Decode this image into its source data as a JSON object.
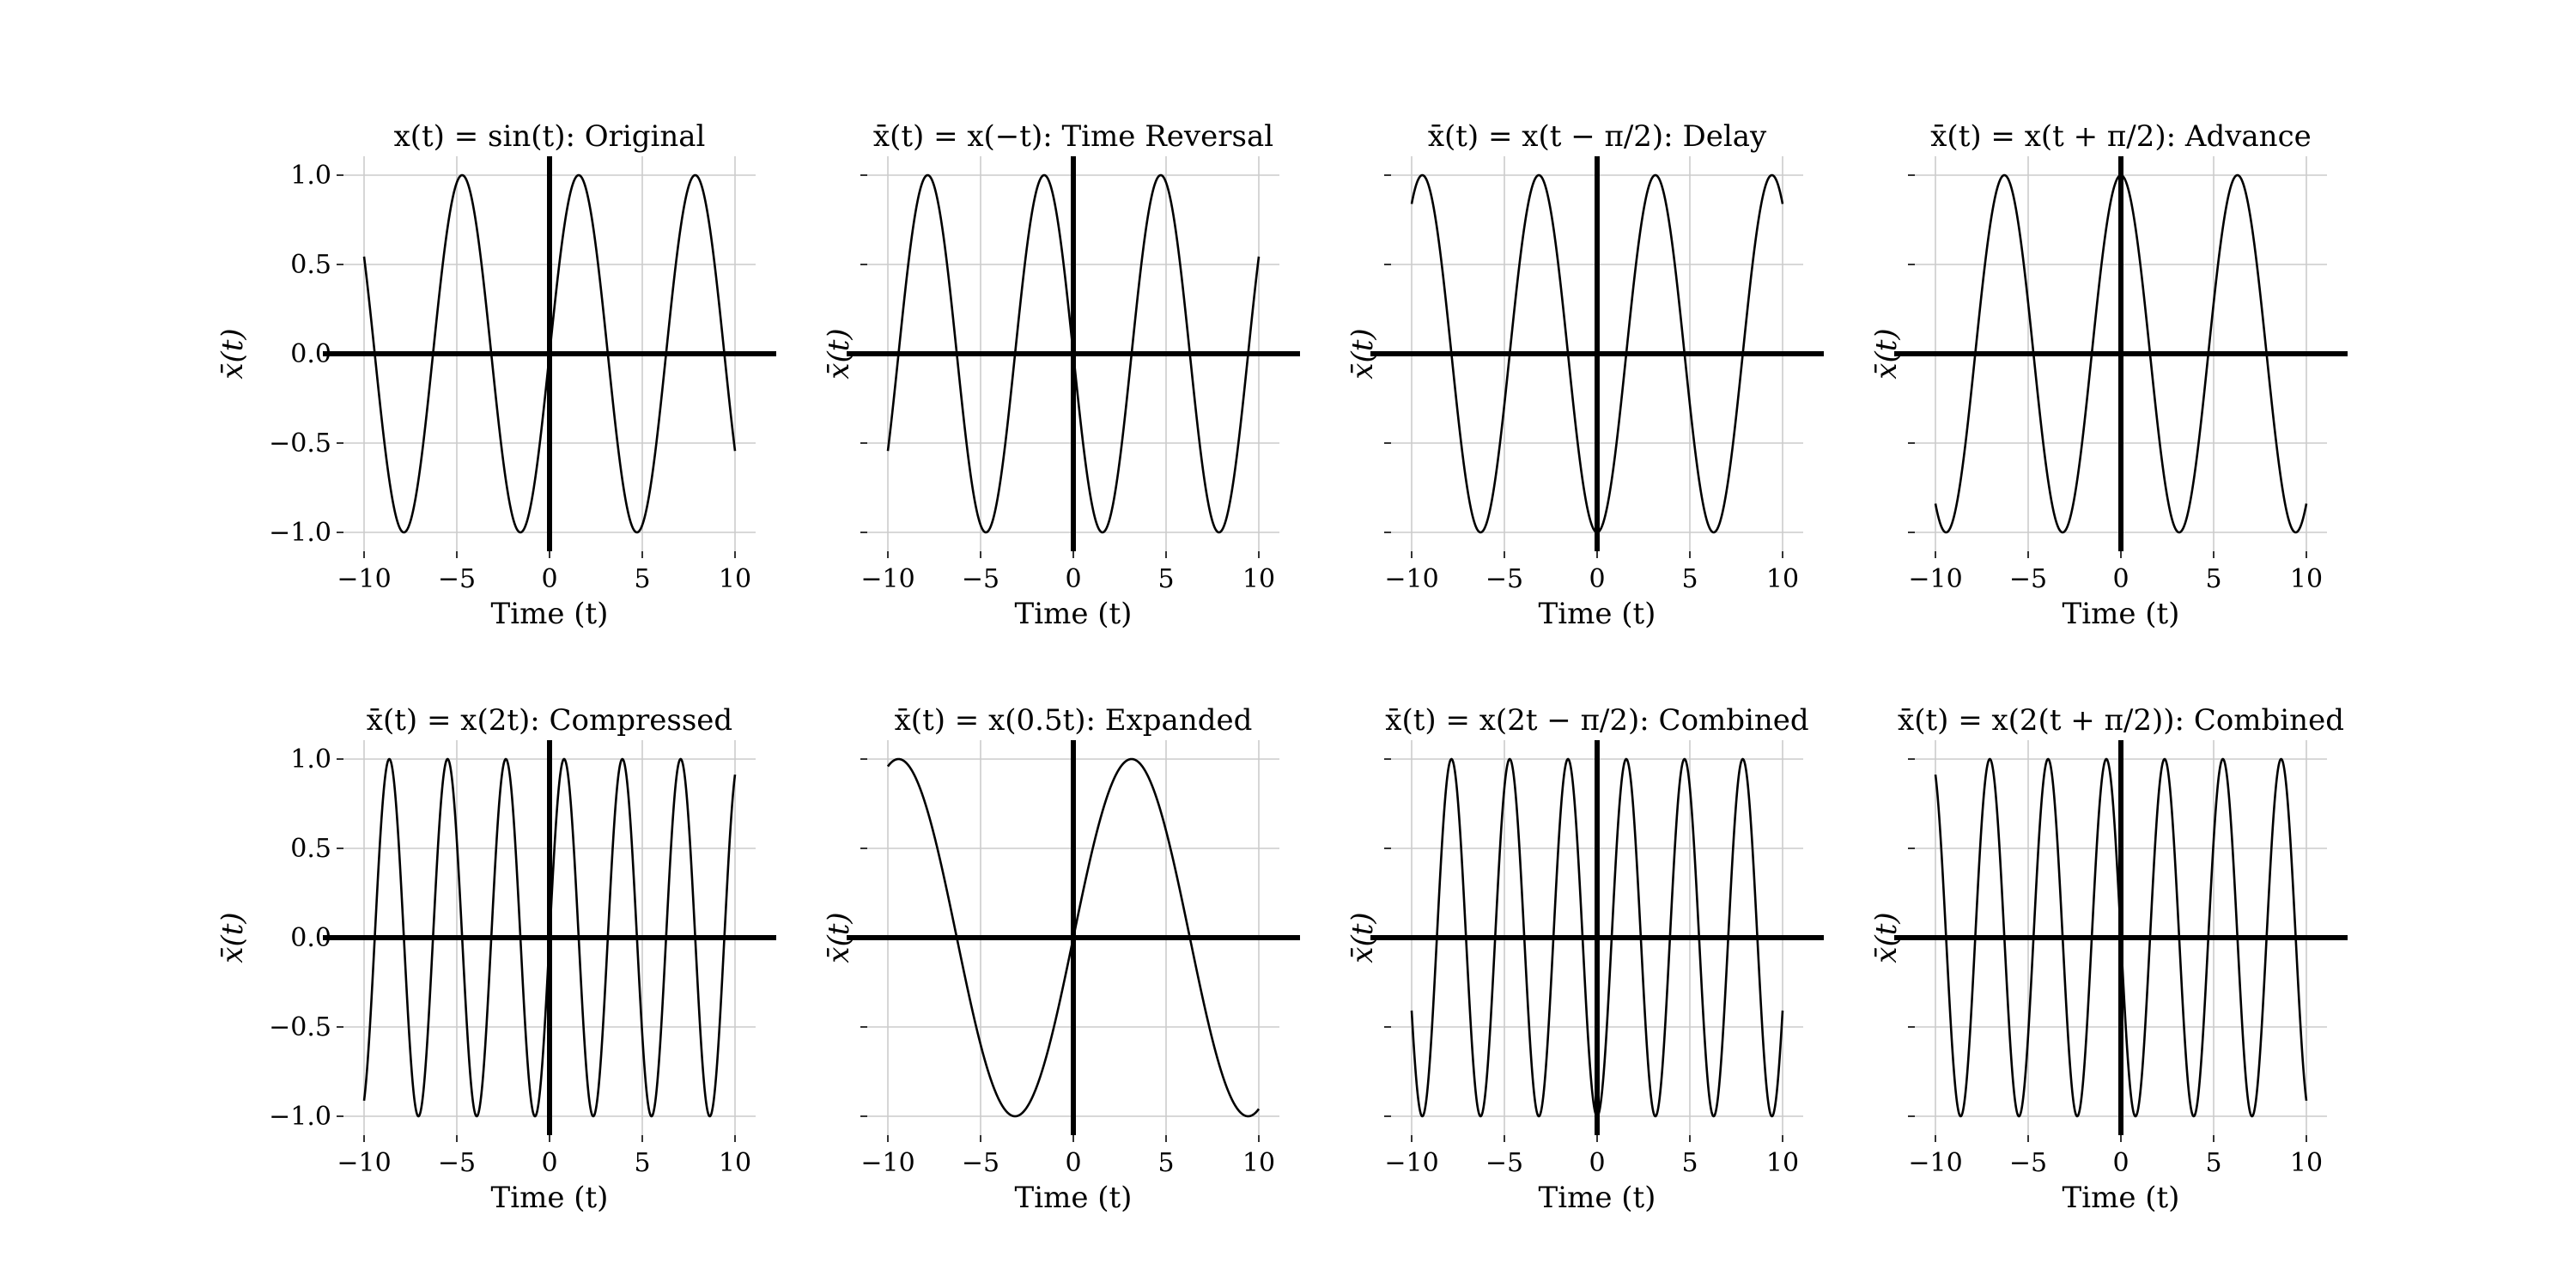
{
  "figure": {
    "background": "#ffffff",
    "line_color": "#000000",
    "grid_color": "#cccccc"
  },
  "chart_data": [
    {
      "type": "line",
      "title": "x(t) = sin(t): Original",
      "xlabel": "Time (t)",
      "ylabel": "x̄(t)",
      "xlim": [
        -10,
        10
      ],
      "ylim": [
        -1.0,
        1.0
      ],
      "xticks": [
        "−10",
        "−5",
        "0",
        "5",
        "10"
      ],
      "yticks": [
        "1.0",
        "0.5",
        "0.0",
        "−0.5",
        "−1.0"
      ],
      "show_y_tick_labels": true,
      "grid": true,
      "series": [
        {
          "function": "sin(t)",
          "freq": 1,
          "phase": 0
        }
      ]
    },
    {
      "type": "line",
      "title": "x̄(t) = x(−t): Time Reversal",
      "xlabel": "Time (t)",
      "ylabel": "x̄(t)",
      "xlim": [
        -10,
        10
      ],
      "ylim": [
        -1.0,
        1.0
      ],
      "xticks": [
        "−10",
        "−5",
        "0",
        "5",
        "10"
      ],
      "yticks": [
        "1.0",
        "0.5",
        "0.0",
        "−0.5",
        "−1.0"
      ],
      "show_y_tick_labels": false,
      "grid": true,
      "series": [
        {
          "function": "sin(-t)",
          "freq": -1,
          "phase": 0
        }
      ]
    },
    {
      "type": "line",
      "title": "x̄(t) = x(t − π/2): Delay",
      "xlabel": "Time (t)",
      "ylabel": "x̄(t)",
      "xlim": [
        -10,
        10
      ],
      "ylim": [
        -1.0,
        1.0
      ],
      "xticks": [
        "−10",
        "−5",
        "0",
        "5",
        "10"
      ],
      "yticks": [
        "1.0",
        "0.5",
        "0.0",
        "−0.5",
        "−1.0"
      ],
      "show_y_tick_labels": false,
      "grid": true,
      "series": [
        {
          "function": "sin(t - pi/2)",
          "freq": 1,
          "phase": -1.5707963
        }
      ]
    },
    {
      "type": "line",
      "title": "x̄(t) = x(t + π/2): Advance",
      "xlabel": "Time (t)",
      "ylabel": "x̄(t)",
      "xlim": [
        -10,
        10
      ],
      "ylim": [
        -1.0,
        1.0
      ],
      "xticks": [
        "−10",
        "−5",
        "0",
        "5",
        "10"
      ],
      "yticks": [
        "1.0",
        "0.5",
        "0.0",
        "−0.5",
        "−1.0"
      ],
      "show_y_tick_labels": false,
      "grid": true,
      "series": [
        {
          "function": "sin(t + pi/2)",
          "freq": 1,
          "phase": 1.5707963
        }
      ]
    },
    {
      "type": "line",
      "title": "x̄(t) = x(2t): Compressed",
      "xlabel": "Time (t)",
      "ylabel": "x̄(t)",
      "xlim": [
        -10,
        10
      ],
      "ylim": [
        -1.0,
        1.0
      ],
      "xticks": [
        "−10",
        "−5",
        "0",
        "5",
        "10"
      ],
      "yticks": [
        "1.0",
        "0.5",
        "0.0",
        "−0.5",
        "−1.0"
      ],
      "show_y_tick_labels": true,
      "grid": true,
      "series": [
        {
          "function": "sin(2t)",
          "freq": 2,
          "phase": 0
        }
      ]
    },
    {
      "type": "line",
      "title": "x̄(t) = x(0.5t): Expanded",
      "xlabel": "Time (t)",
      "ylabel": "x̄(t)",
      "xlim": [
        -10,
        10
      ],
      "ylim": [
        -1.0,
        1.0
      ],
      "xticks": [
        "−10",
        "−5",
        "0",
        "5",
        "10"
      ],
      "yticks": [
        "1.0",
        "0.5",
        "0.0",
        "−0.5",
        "−1.0"
      ],
      "show_y_tick_labels": false,
      "grid": true,
      "series": [
        {
          "function": "sin(0.5t)",
          "freq": 0.5,
          "phase": 0
        }
      ]
    },
    {
      "type": "line",
      "title": "x̄(t) = x(2t − π/2): Combined",
      "xlabel": "Time (t)",
      "ylabel": "x̄(t)",
      "xlim": [
        -10,
        10
      ],
      "ylim": [
        -1.0,
        1.0
      ],
      "xticks": [
        "−10",
        "−5",
        "0",
        "5",
        "10"
      ],
      "yticks": [
        "1.0",
        "0.5",
        "0.0",
        "−0.5",
        "−1.0"
      ],
      "show_y_tick_labels": false,
      "grid": true,
      "series": [
        {
          "function": "sin(2t - pi/2)",
          "freq": 2,
          "phase": -1.5707963
        }
      ]
    },
    {
      "type": "line",
      "title": "x̄(t) = x(2(t + π/2)): Combined",
      "xlabel": "Time (t)",
      "ylabel": "x̄(t)",
      "xlim": [
        -10,
        10
      ],
      "ylim": [
        -1.0,
        1.0
      ],
      "xticks": [
        "−10",
        "−5",
        "0",
        "5",
        "10"
      ],
      "yticks": [
        "1.0",
        "0.5",
        "0.0",
        "−0.5",
        "−1.0"
      ],
      "show_y_tick_labels": false,
      "grid": true,
      "series": [
        {
          "function": "sin(2(t + pi/2))",
          "freq": 2,
          "phase": 3.1415927
        }
      ]
    }
  ]
}
